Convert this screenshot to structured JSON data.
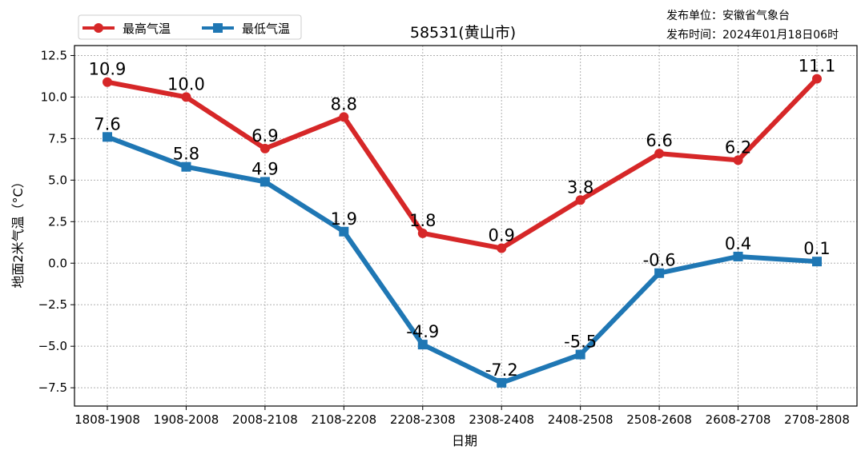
{
  "chart_data": {
    "type": "line",
    "title": "58531(黄山市)",
    "info": [
      "发布单位：安徽省气象台",
      "发布时间：2024年01月18日06时"
    ],
    "xlabel": "日期",
    "ylabel": "地面2米气温（°C）",
    "categories": [
      "1808-1908",
      "1908-2008",
      "2008-2108",
      "2108-2208",
      "2208-2308",
      "2308-2408",
      "2408-2508",
      "2508-2608",
      "2608-2708",
      "2708-2808"
    ],
    "ylim": [
      -8.6,
      13.1
    ],
    "yticks": [
      -7.5,
      -5.0,
      -2.5,
      0.0,
      2.5,
      5.0,
      7.5,
      10.0,
      12.5
    ],
    "ytick_labels": [
      "−7.5",
      "−5.0",
      "−2.5",
      "0.0",
      "2.5",
      "5.0",
      "7.5",
      "10.0",
      "12.5"
    ],
    "grid": true,
    "legend_position": "top-left",
    "series": [
      {
        "name": "最高气温",
        "color": "#d62728",
        "marker": "circle",
        "values": [
          10.9,
          10.0,
          6.9,
          8.8,
          1.8,
          0.9,
          3.8,
          6.6,
          6.2,
          11.1
        ],
        "labels": [
          "10.9",
          "10.0",
          "6.9",
          "8.8",
          "1.8",
          "0.9",
          "3.8",
          "6.6",
          "6.2",
          "11.1"
        ]
      },
      {
        "name": "最低气温",
        "color": "#1f77b4",
        "marker": "square",
        "values": [
          7.6,
          5.8,
          4.9,
          1.9,
          -4.9,
          -7.2,
          -5.5,
          -0.6,
          0.4,
          0.1
        ],
        "labels": [
          "7.6",
          "5.8",
          "4.9",
          "1.9",
          "-4.9",
          "-7.2",
          "-5.5",
          "-0.6",
          "0.4",
          "0.1"
        ]
      }
    ]
  }
}
